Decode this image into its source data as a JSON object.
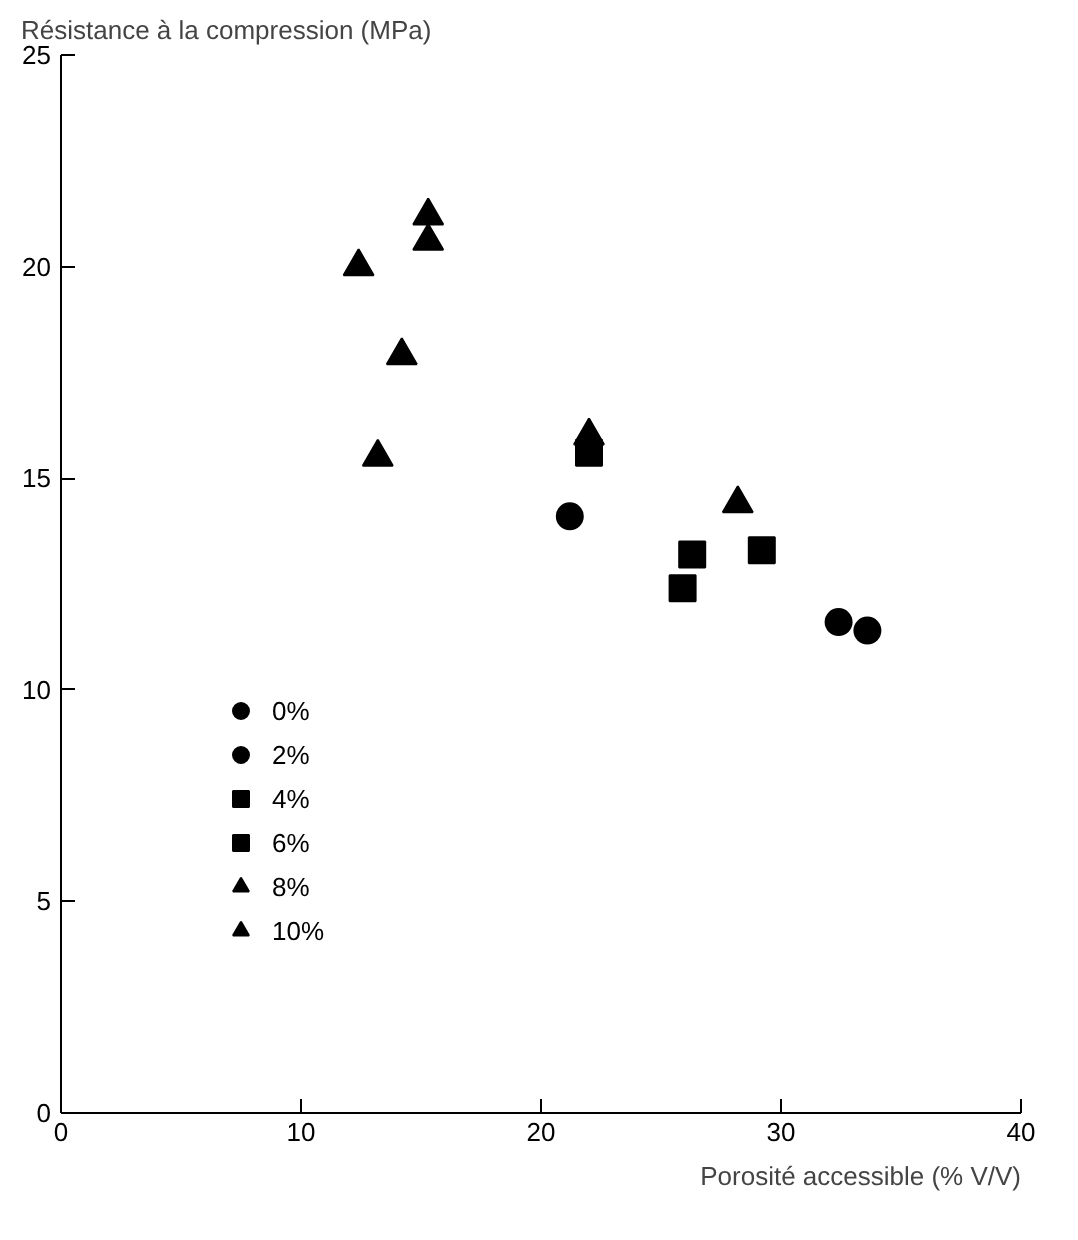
{
  "chart_data": {
    "type": "scatter",
    "xlabel": "Porosité accessible (% V/V)",
    "ylabel": "Résistance à la compression (MPa)",
    "xlim": [
      0,
      40
    ],
    "ylim": [
      0,
      25
    ],
    "xticks": [
      0,
      10,
      20,
      30,
      40
    ],
    "yticks": [
      0,
      5,
      10,
      15,
      20,
      25
    ],
    "grid": false,
    "legend": "bottom left",
    "series": [
      {
        "name": "0%",
        "color": "#000000",
        "marker": "circle",
        "x": [
          21.2
        ],
        "values": [
          14.1
        ]
      },
      {
        "name": "2%",
        "color": "#000000",
        "marker": "circle",
        "x": [
          32.4,
          33.6
        ],
        "values": [
          11.6,
          11.4
        ]
      },
      {
        "name": "4%",
        "color": "#000000",
        "marker": "square",
        "x": [
          22.0,
          29.2
        ],
        "values": [
          15.6,
          13.3
        ]
      },
      {
        "name": "6%",
        "color": "#000000",
        "marker": "square",
        "x": [
          25.9,
          26.3
        ],
        "values": [
          12.4,
          13.2
        ]
      },
      {
        "name": "8%",
        "color": "#000000",
        "marker": "triangle",
        "x": [
          12.4,
          15.3,
          14.2,
          22.0
        ],
        "values": [
          20.0,
          21.2,
          17.9,
          16.0
        ]
      },
      {
        "name": "10%",
        "color": "#000000",
        "marker": "triangle",
        "x": [
          15.3,
          13.2,
          28.2
        ],
        "values": [
          20.6,
          15.5,
          14.4
        ]
      }
    ]
  }
}
